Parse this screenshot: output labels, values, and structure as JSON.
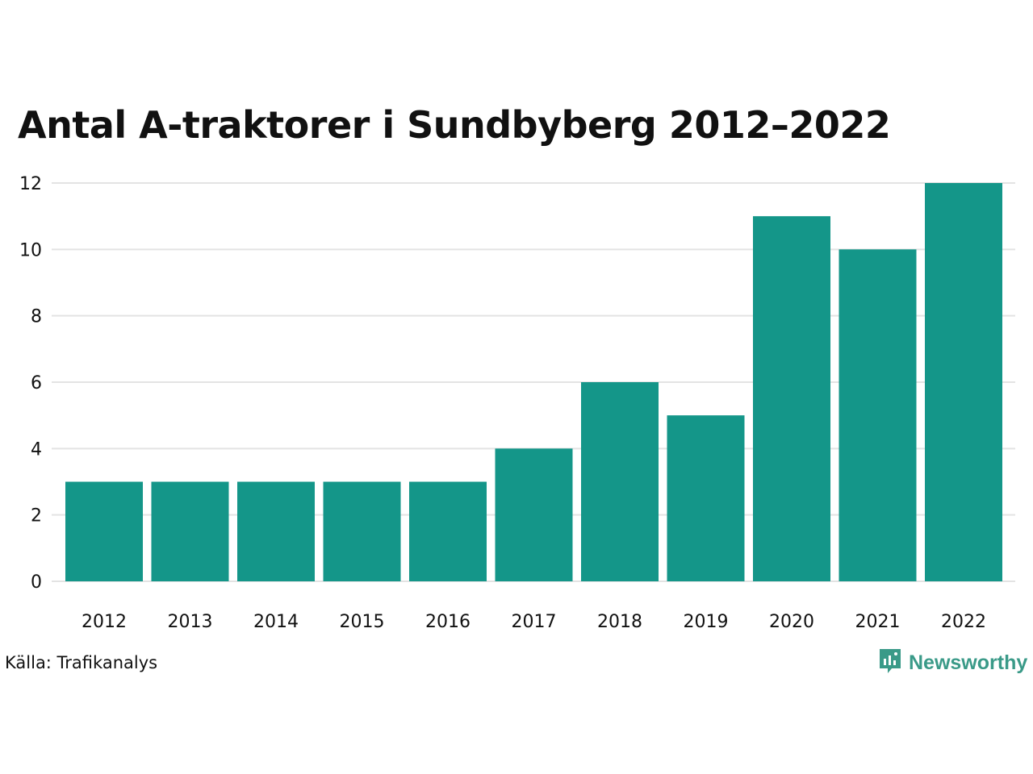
{
  "colors": {
    "bar": "#149689",
    "grid": "#e3e3e3",
    "text": "#111111",
    "brand": "#3a9a88"
  },
  "source": "Källa: Trafikanalys",
  "brand": {
    "name": "Newsworthy",
    "icon": "newsworthy-logo-icon"
  },
  "chart_data": {
    "type": "bar",
    "title": "Antal A-traktorer i Sundbyberg 2012–2022",
    "xlabel": "",
    "ylabel": "",
    "categories": [
      "2012",
      "2013",
      "2014",
      "2015",
      "2016",
      "2017",
      "2018",
      "2019",
      "2020",
      "2021",
      "2022"
    ],
    "values": [
      3,
      3,
      3,
      3,
      3,
      4,
      6,
      5,
      11,
      10,
      12
    ],
    "ylim": [
      0,
      12
    ],
    "yticks": [
      0,
      2,
      4,
      6,
      8,
      10,
      12
    ],
    "grid": true,
    "legend": "none"
  }
}
